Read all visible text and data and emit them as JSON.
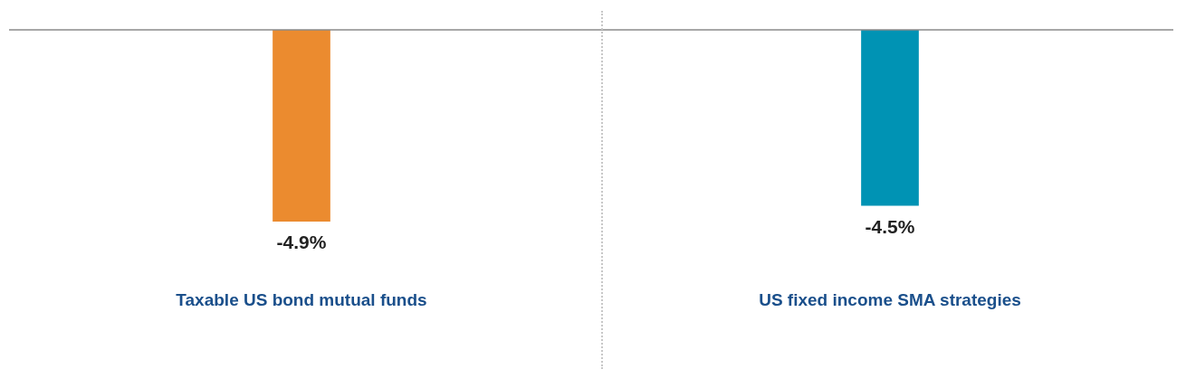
{
  "chart_data": {
    "type": "bar",
    "categories": [
      "Taxable US bond mutual funds",
      "US fixed income SMA strategies"
    ],
    "values": [
      -4.9,
      -4.5
    ],
    "colors": [
      "#eb8b2f",
      "#0093b4"
    ],
    "value_labels": [
      "-4.9%",
      "-4.5%"
    ],
    "legend": false,
    "grid": false
  }
}
